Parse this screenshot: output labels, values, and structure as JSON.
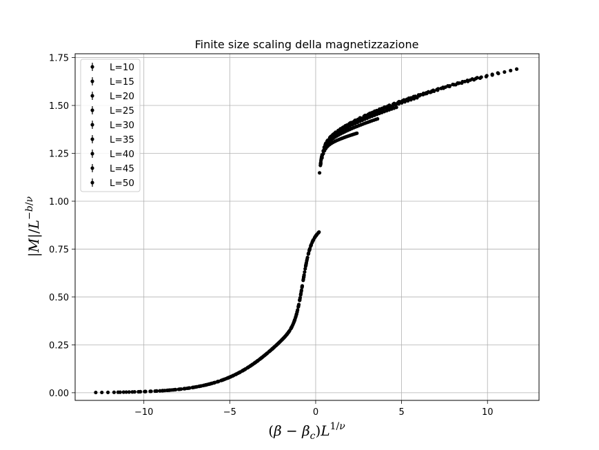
{
  "chart_data": {
    "type": "scatter",
    "title": "Finite size scaling della magnetizzazione",
    "xlabel": "(β − β_c)L^{1/ν}",
    "ylabel": "|M|/L^{−b/ν}",
    "xlim": [
      -14.0,
      13.0
    ],
    "ylim": [
      -0.04,
      1.77
    ],
    "xticks": [
      {
        "v": -10,
        "label": "−10"
      },
      {
        "v": -5,
        "label": "−5"
      },
      {
        "v": 0,
        "label": "0"
      },
      {
        "v": 5,
        "label": "5"
      },
      {
        "v": 10,
        "label": "10"
      }
    ],
    "yticks": [
      {
        "v": 0.0,
        "label": "0.00"
      },
      {
        "v": 0.25,
        "label": "0.25"
      },
      {
        "v": 0.5,
        "label": "0.50"
      },
      {
        "v": 0.75,
        "label": "0.75"
      },
      {
        "v": 1.0,
        "label": "1.00"
      },
      {
        "v": 1.25,
        "label": "1.25"
      },
      {
        "v": 1.5,
        "label": "1.50"
      },
      {
        "v": 1.75,
        "label": "1.75"
      }
    ],
    "grid": true,
    "legend_position": "upper-left",
    "marker_color": "#000000",
    "series": [
      {
        "name": "L=10",
        "x_range": [
          -2.6,
          2.4
        ],
        "upper_end": 1.355
      },
      {
        "name": "L=15",
        "x_range": [
          -3.8,
          3.6
        ],
        "upper_end": 1.43
      },
      {
        "name": "L=20",
        "x_range": [
          -5.1,
          4.7
        ],
        "upper_end": 1.49
      },
      {
        "name": "L=25",
        "x_range": [
          -6.4,
          5.9
        ],
        "upper_end": 1.54
      },
      {
        "name": "L=30",
        "x_range": [
          -7.6,
          7.1
        ],
        "upper_end": 1.58
      },
      {
        "name": "L=35",
        "x_range": [
          -8.9,
          8.3
        ],
        "upper_end": 1.615
      },
      {
        "name": "L=40",
        "x_range": [
          -10.2,
          9.4
        ],
        "upper_end": 1.645
      },
      {
        "name": "L=45",
        "x_range": [
          -11.5,
          10.6
        ],
        "upper_end": 1.67
      },
      {
        "name": "L=50",
        "x_range": [
          -12.8,
          11.7
        ],
        "upper_end": 1.69
      }
    ]
  }
}
